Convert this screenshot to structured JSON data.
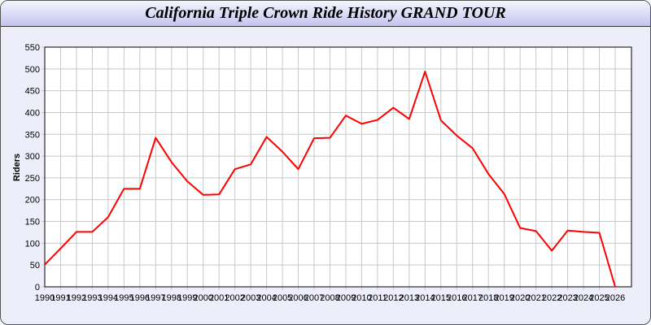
{
  "chart_data": {
    "type": "line",
    "title": "California Triple Crown Ride History GRAND TOUR",
    "xlabel": "",
    "ylabel": "Riders",
    "ylim": [
      0,
      550
    ],
    "yticks": [
      0,
      50,
      100,
      150,
      200,
      250,
      300,
      350,
      400,
      450,
      500,
      550
    ],
    "grid": true,
    "x": [
      1990,
      1991,
      1992,
      1993,
      1994,
      1995,
      1996,
      1997,
      1998,
      1999,
      2000,
      2001,
      2002,
      2003,
      2004,
      2005,
      2006,
      2007,
      2008,
      2009,
      2010,
      2011,
      2012,
      2013,
      2014,
      2015,
      2016,
      2017,
      2018,
      2019,
      2020,
      2021,
      2022,
      2023,
      2024,
      2025,
      2026
    ],
    "series": [
      {
        "values": [
          51,
          88,
          126,
          126,
          160,
          225,
          225,
          342,
          286,
          242,
          211,
          212,
          270,
          281,
          344,
          310,
          270,
          341,
          342,
          393,
          374,
          383,
          411,
          385,
          494,
          382,
          347,
          318,
          259,
          213,
          135,
          128,
          83,
          129,
          126,
          124,
          0
        ],
        "color": "#ff0000"
      }
    ]
  }
}
